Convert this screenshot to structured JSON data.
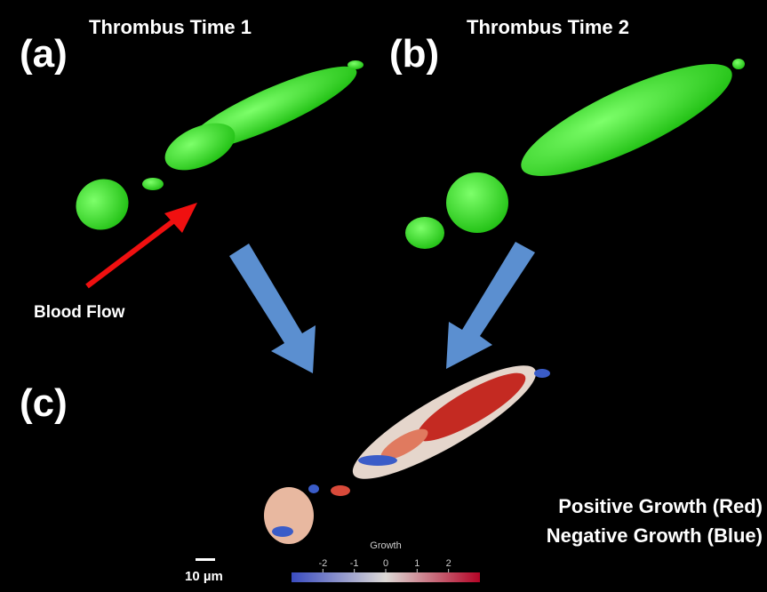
{
  "panels": [
    {
      "label": "(a)",
      "title": "Thrombus Time 1"
    },
    {
      "label": "(b)",
      "title": "Thrombus Time 2"
    },
    {
      "label": "(c)"
    }
  ],
  "annotations": {
    "flow": "Blood Flow",
    "positive": "Positive Growth (Red)",
    "negative": "Negative Growth (Blue)",
    "scale_bar": "10 µm"
  },
  "colorbar": {
    "title": "Growth",
    "range": [
      -3,
      3
    ],
    "ticks": [
      -2,
      -1,
      0,
      1,
      2
    ]
  }
}
